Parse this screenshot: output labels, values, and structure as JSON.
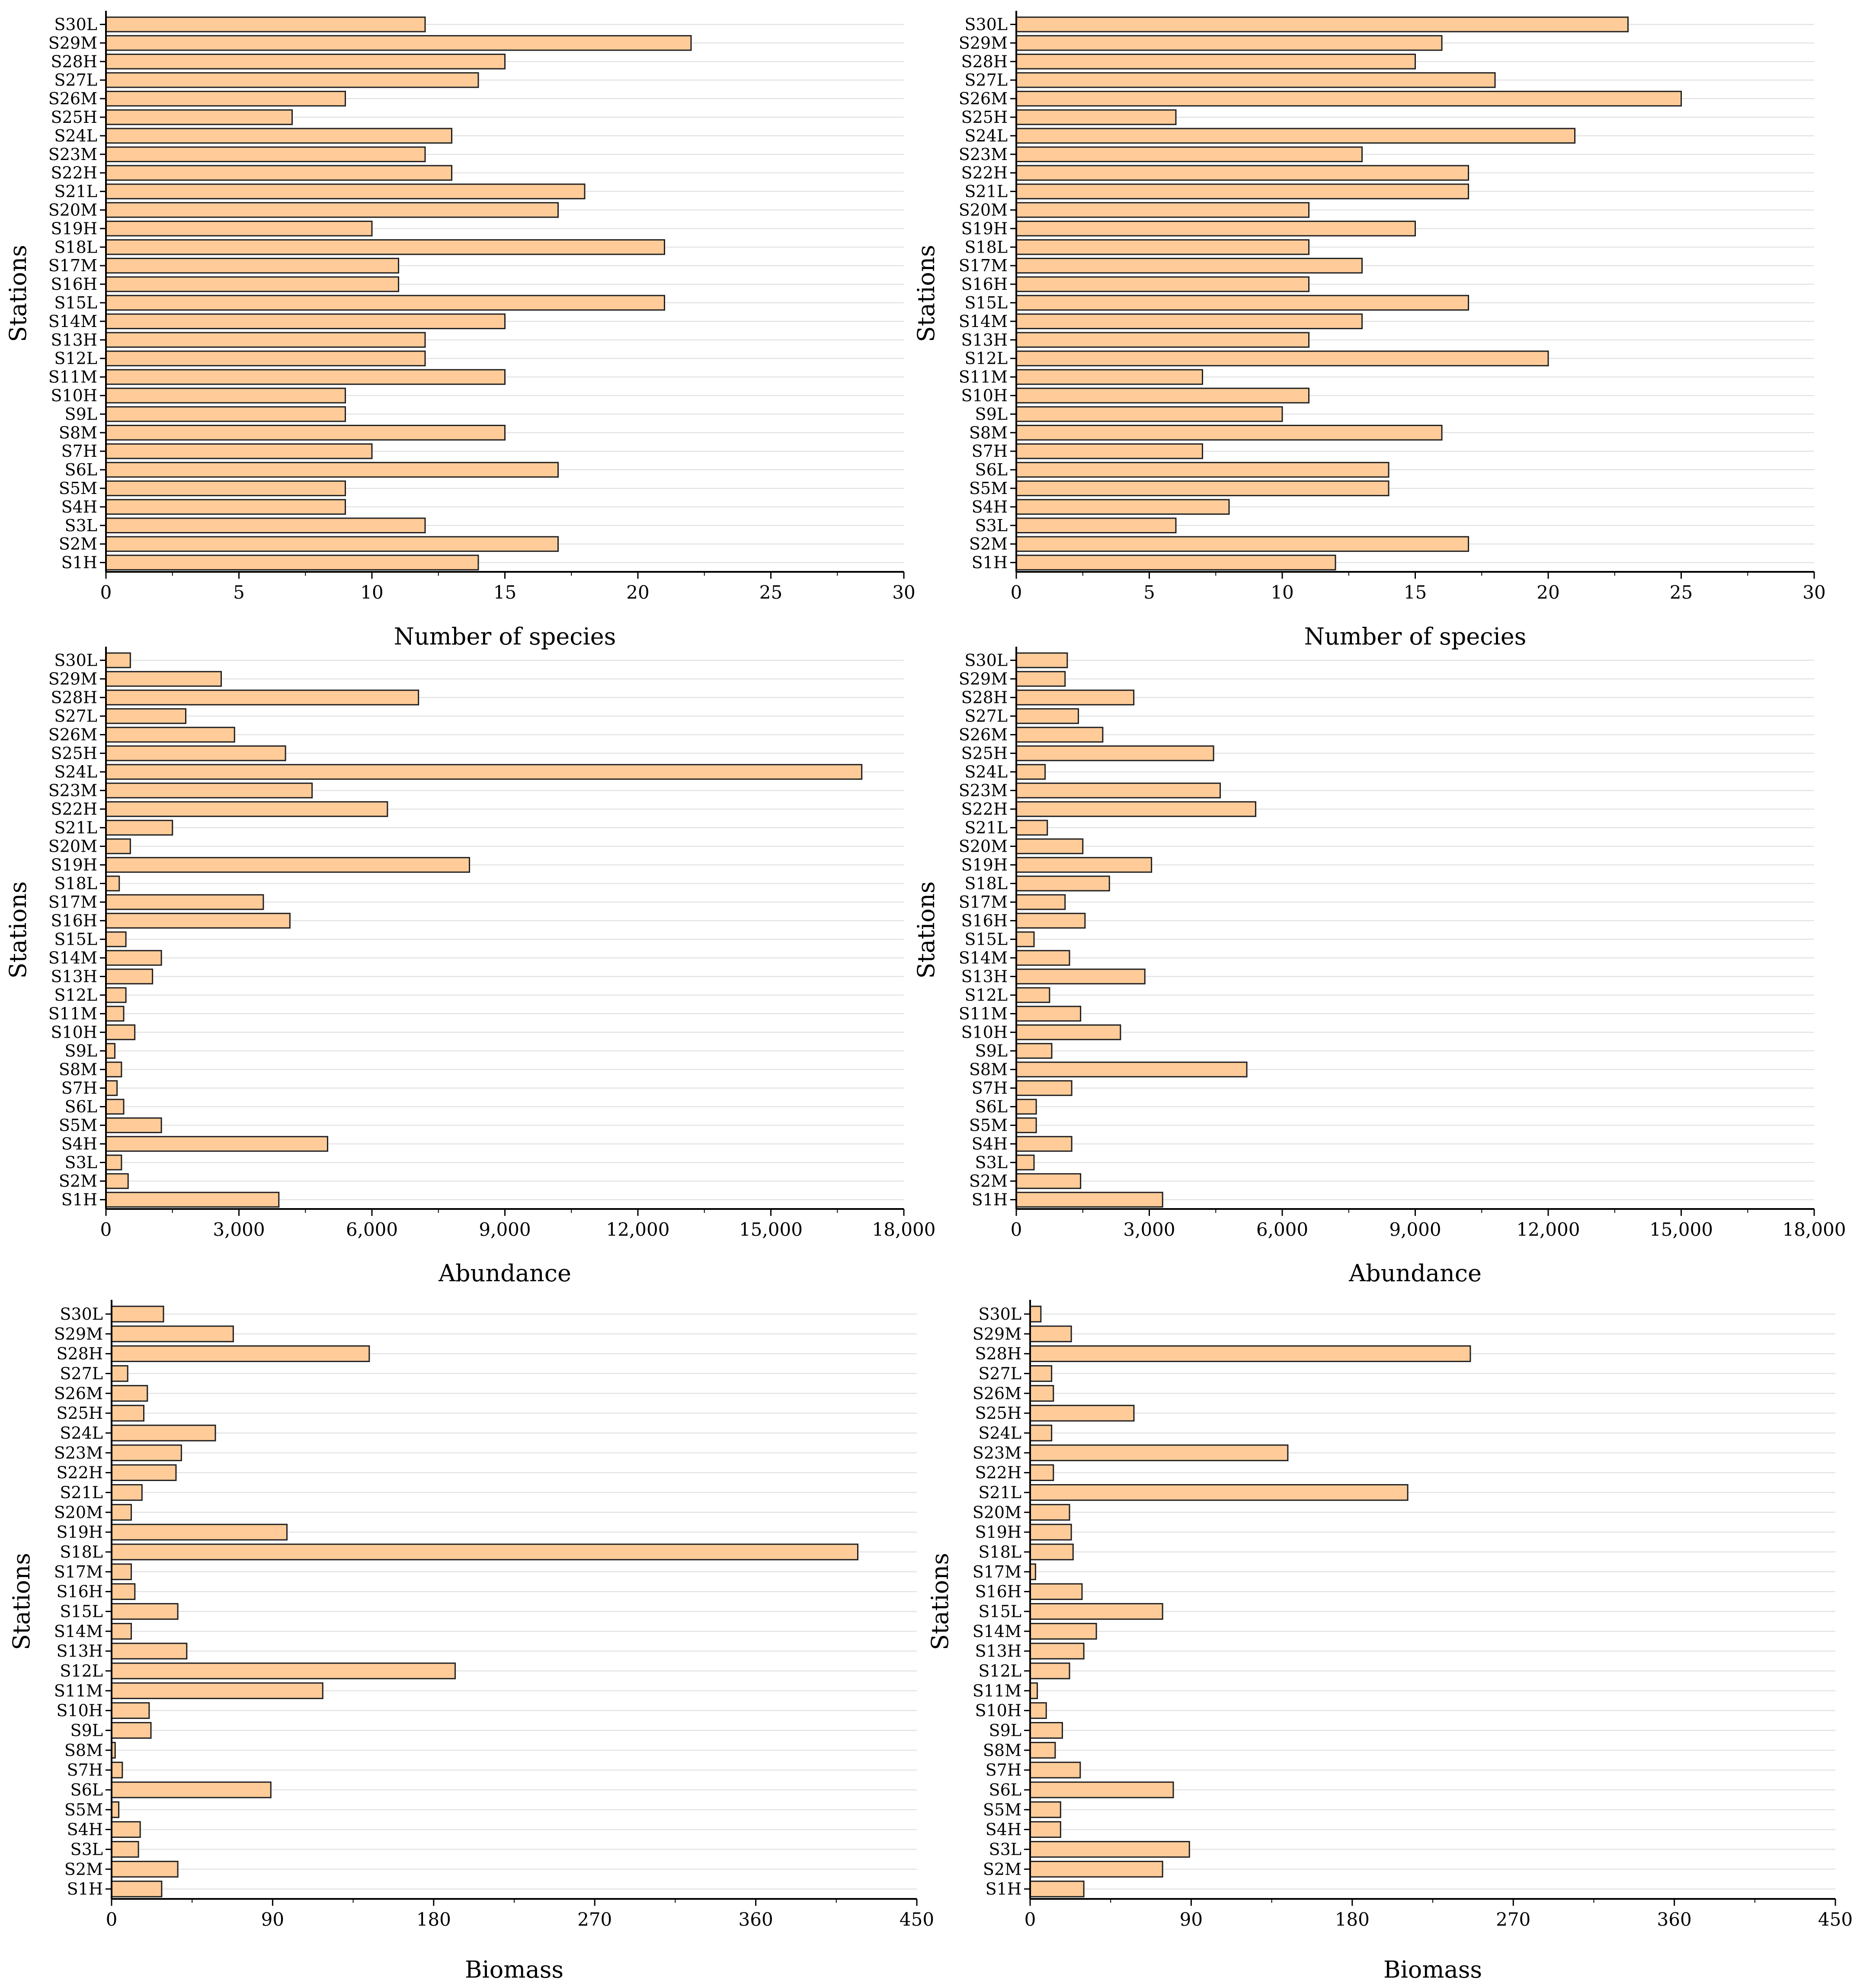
{
  "style": {
    "bar_fill": "#ffcc99",
    "bar_stroke": "#222222",
    "grid": "#dddddd",
    "axis": "#000000"
  },
  "chart_data": [
    {
      "type": "bar",
      "orientation": "horizontal",
      "position": "top-left",
      "xlabel": "Number of species",
      "ylabel": "Stations",
      "xlim": [
        0,
        30
      ],
      "xticks": [
        0,
        5,
        10,
        15,
        20,
        25,
        30
      ],
      "xtick_labels": [
        "0",
        "5",
        "10",
        "15",
        "20",
        "25",
        "30"
      ],
      "categories": [
        "S1H",
        "S2M",
        "S3L",
        "S4H",
        "S5M",
        "S6L",
        "S7H",
        "S8M",
        "S9L",
        "S10H",
        "S11M",
        "S12L",
        "S13H",
        "S14M",
        "S15L",
        "S16H",
        "S17M",
        "S18L",
        "S19H",
        "S20M",
        "S21L",
        "S22H",
        "S23M",
        "S24L",
        "S25H",
        "S26M",
        "S27L",
        "S28H",
        "S29M",
        "S30L"
      ],
      "values": [
        14,
        17,
        12,
        9,
        9,
        17,
        10,
        15,
        9,
        9,
        15,
        12,
        12,
        15,
        21,
        11,
        11,
        21,
        10,
        17,
        18,
        13,
        12,
        13,
        7,
        9,
        14,
        15,
        22,
        12
      ]
    },
    {
      "type": "bar",
      "orientation": "horizontal",
      "position": "top-right",
      "xlabel": "Number of species",
      "ylabel": "Stations",
      "xlim": [
        0,
        30
      ],
      "xticks": [
        0,
        5,
        10,
        15,
        20,
        25,
        30
      ],
      "xtick_labels": [
        "0",
        "5",
        "10",
        "15",
        "20",
        "25",
        "30"
      ],
      "categories": [
        "S1H",
        "S2M",
        "S3L",
        "S4H",
        "S5M",
        "S6L",
        "S7H",
        "S8M",
        "S9L",
        "S10H",
        "S11M",
        "S12L",
        "S13H",
        "S14M",
        "S15L",
        "S16H",
        "S17M",
        "S18L",
        "S19H",
        "S20M",
        "S21L",
        "S22H",
        "S23M",
        "S24L",
        "S25H",
        "S26M",
        "S27L",
        "S28H",
        "S29M",
        "S30L"
      ],
      "values": [
        12,
        17,
        6,
        8,
        14,
        14,
        7,
        16,
        10,
        11,
        7,
        20,
        11,
        13,
        17,
        11,
        13,
        11,
        15,
        11,
        17,
        17,
        13,
        21,
        6,
        25,
        18,
        15,
        16,
        23
      ]
    },
    {
      "type": "bar",
      "orientation": "horizontal",
      "position": "middle-left",
      "xlabel": "Abundance",
      "ylabel": "Stations",
      "xlim": [
        0,
        18000
      ],
      "xticks": [
        0,
        3000,
        6000,
        9000,
        12000,
        15000,
        18000
      ],
      "xtick_labels": [
        "0",
        "3,000",
        "6,000",
        "9,000",
        "12,000",
        "15,000",
        "18,000"
      ],
      "categories": [
        "S1H",
        "S2M",
        "S3L",
        "S4H",
        "S5M",
        "S6L",
        "S7H",
        "S8M",
        "S9L",
        "S10H",
        "S11M",
        "S12L",
        "S13H",
        "S14M",
        "S15L",
        "S16H",
        "S17M",
        "S18L",
        "S19H",
        "S20M",
        "S21L",
        "S22H",
        "S23M",
        "S24L",
        "S25H",
        "S26M",
        "S27L",
        "S28H",
        "S29M",
        "S30L"
      ],
      "values": [
        3900,
        500,
        350,
        5000,
        1250,
        400,
        250,
        350,
        200,
        650,
        400,
        450,
        1050,
        1250,
        450,
        4150,
        3550,
        300,
        8200,
        550,
        1500,
        6350,
        4650,
        17050,
        4050,
        2900,
        1800,
        7050,
        2600,
        550
      ]
    },
    {
      "type": "bar",
      "orientation": "horizontal",
      "position": "middle-right",
      "xlabel": "Abundance",
      "ylabel": "Stations",
      "xlim": [
        0,
        18000
      ],
      "xticks": [
        0,
        3000,
        6000,
        9000,
        12000,
        15000,
        18000
      ],
      "xtick_labels": [
        "0",
        "3,000",
        "6,000",
        "9,000",
        "12,000",
        "15,000",
        "18,000"
      ],
      "categories": [
        "S1H",
        "S2M",
        "S3L",
        "S4H",
        "S5M",
        "S6L",
        "S7H",
        "S8M",
        "S9L",
        "S10H",
        "S11M",
        "S12L",
        "S13H",
        "S14M",
        "S15L",
        "S16H",
        "S17M",
        "S18L",
        "S19H",
        "S20M",
        "S21L",
        "S22H",
        "S23M",
        "S24L",
        "S25H",
        "S26M",
        "S27L",
        "S28H",
        "S29M",
        "S30L"
      ],
      "values": [
        3300,
        1450,
        400,
        1250,
        450,
        450,
        1250,
        5200,
        800,
        2350,
        1450,
        750,
        2900,
        1200,
        400,
        1550,
        1100,
        2100,
        3050,
        1500,
        700,
        5400,
        4600,
        650,
        4450,
        1950,
        1400,
        2650,
        1100,
        1150
      ]
    },
    {
      "type": "bar",
      "orientation": "horizontal",
      "position": "bottom-left",
      "xlabel": "Biomass",
      "ylabel": "Stations",
      "xlim": [
        0,
        450
      ],
      "xticks": [
        0,
        90,
        180,
        270,
        360,
        450
      ],
      "xtick_labels": [
        "0",
        "90",
        "180",
        "270",
        "360",
        "450"
      ],
      "categories": [
        "S1H",
        "S2M",
        "S3L",
        "S4H",
        "S5M",
        "S6L",
        "S7H",
        "S8M",
        "S9L",
        "S10H",
        "S11M",
        "S12L",
        "S13H",
        "S14M",
        "S15L",
        "S16H",
        "S17M",
        "S18L",
        "S19H",
        "S20M",
        "S21L",
        "S22H",
        "S23M",
        "S24L",
        "S25H",
        "S26M",
        "S27L",
        "S28H",
        "S29M",
        "S30L"
      ],
      "values": [
        28,
        37,
        15,
        16,
        4,
        89,
        6,
        2,
        22,
        21,
        118,
        192,
        42,
        11,
        37,
        13,
        11,
        417,
        98,
        11,
        17,
        36,
        39,
        58,
        18,
        20,
        9,
        144,
        68,
        29
      ]
    },
    {
      "type": "bar",
      "orientation": "horizontal",
      "position": "bottom-right",
      "xlabel": "Biomass",
      "ylabel": "Stations",
      "xlim": [
        0,
        450
      ],
      "xticks": [
        0,
        90,
        180,
        270,
        360,
        450
      ],
      "xtick_labels": [
        "0",
        "90",
        "180",
        "270",
        "360",
        "450"
      ],
      "categories": [
        "S1H",
        "S2M",
        "S3L",
        "S4H",
        "S5M",
        "S6L",
        "S7H",
        "S8M",
        "S9L",
        "S10H",
        "S11M",
        "S12L",
        "S13H",
        "S14M",
        "S15L",
        "S16H",
        "S17M",
        "S18L",
        "S19H",
        "S20M",
        "S21L",
        "S22H",
        "S23M",
        "S24L",
        "S25H",
        "S26M",
        "S27L",
        "S28H",
        "S29M",
        "S30L"
      ],
      "values": [
        30,
        74,
        89,
        17,
        17,
        80,
        28,
        14,
        18,
        9,
        4,
        22,
        30,
        37,
        74,
        29,
        3,
        24,
        23,
        22,
        211,
        13,
        144,
        12,
        58,
        13,
        12,
        246,
        23,
        6
      ]
    }
  ]
}
